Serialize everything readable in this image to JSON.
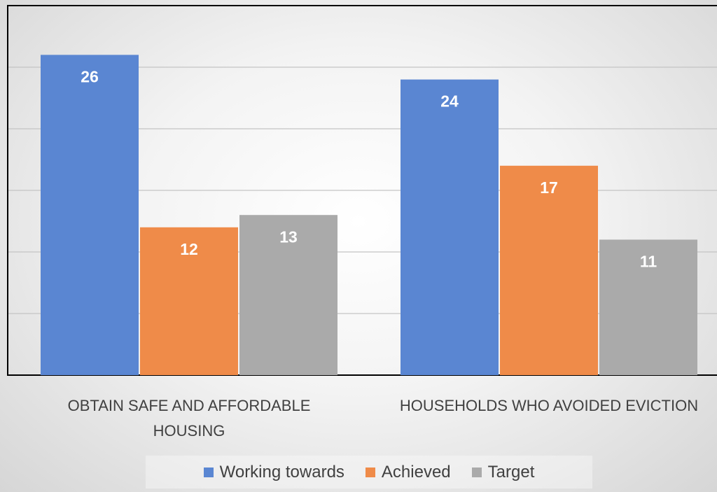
{
  "chart_data": {
    "type": "bar",
    "categories": [
      "OBTAIN SAFE AND AFFORDABLE HOUSING",
      "HOUSEHOLDS WHO AVOIDED EVICTION"
    ],
    "series": [
      {
        "name": "Working towards",
        "color": "#5a86d2",
        "values": [
          26,
          24
        ]
      },
      {
        "name": "Achieved",
        "color": "#ef8b49",
        "values": [
          12,
          17
        ]
      },
      {
        "name": "Target",
        "color": "#aaaaaa",
        "values": [
          13,
          11
        ]
      }
    ],
    "ylim": [
      0,
      30
    ],
    "yticks": [
      0,
      5,
      10,
      15,
      20,
      25,
      30
    ],
    "grid": true,
    "legend": "bottom"
  }
}
